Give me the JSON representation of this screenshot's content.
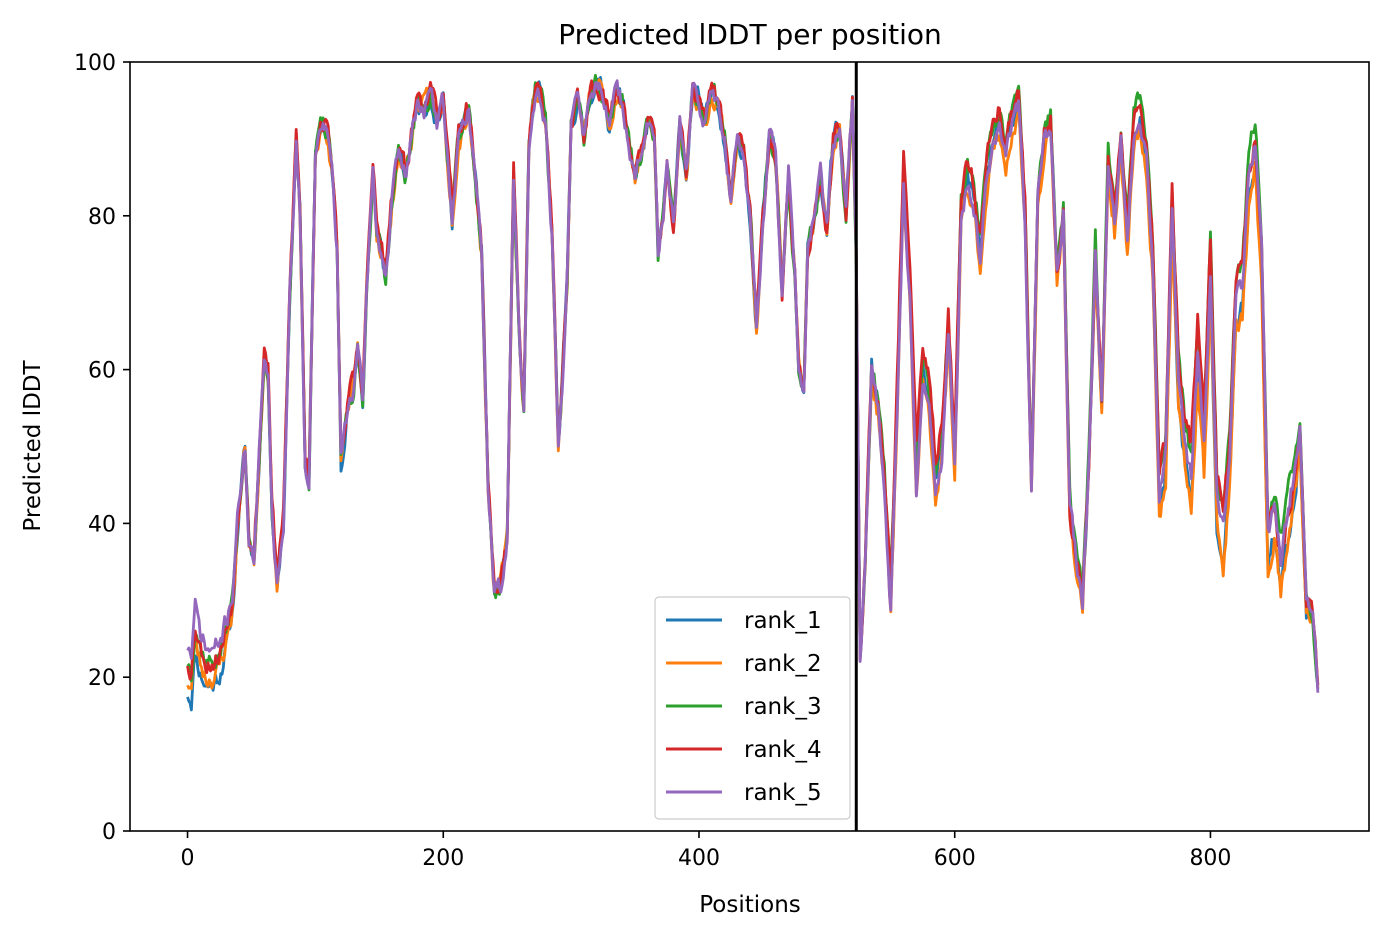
{
  "chart_data": {
    "type": "line",
    "title": "Predicted lDDT per position",
    "xlabel": "Positions",
    "ylabel": "Predicted lDDT",
    "xlim": [
      -45,
      924
    ],
    "ylim": [
      0,
      100
    ],
    "xticks": [
      0,
      200,
      400,
      600,
      800
    ],
    "yticks": [
      0,
      20,
      40,
      60,
      80,
      100
    ],
    "grid": false,
    "legend_position": "lower-right",
    "chain_boundary": 523,
    "colors": {
      "rank_1": "#1f77b4",
      "rank_2": "#ff7f0e",
      "rank_3": "#2ca02c",
      "rank_4": "#d62728",
      "rank_5": "#9467bd",
      "boundary": "#000000"
    },
    "base_profile": {
      "x": [
        0,
        3,
        6,
        10,
        15,
        20,
        25,
        30,
        35,
        40,
        45,
        48,
        52,
        55,
        60,
        63,
        66,
        70,
        75,
        80,
        85,
        88,
        92,
        95,
        100,
        105,
        110,
        113,
        117,
        120,
        125,
        130,
        133,
        137,
        140,
        145,
        148,
        152,
        155,
        160,
        165,
        170,
        175,
        180,
        185,
        190,
        195,
        200,
        203,
        207,
        212,
        216,
        220,
        225,
        230,
        235,
        240,
        245,
        250,
        255,
        260,
        263,
        267,
        272,
        276,
        280,
        285,
        290,
        293,
        297,
        300,
        305,
        310,
        315,
        320,
        325,
        330,
        335,
        340,
        345,
        350,
        355,
        360,
        365,
        368,
        372,
        375,
        380,
        385,
        390,
        395,
        400,
        405,
        410,
        415,
        420,
        425,
        430,
        435,
        440,
        445,
        450,
        455,
        460,
        465,
        470,
        475,
        478,
        482,
        485,
        490,
        495,
        500,
        505,
        510,
        515,
        520,
        523,
        526,
        530,
        535,
        540,
        545,
        550,
        555,
        560,
        565,
        570,
        575,
        580,
        585,
        590,
        595,
        600,
        605,
        610,
        615,
        620,
        625,
        630,
        635,
        640,
        645,
        650,
        655,
        660,
        665,
        670,
        675,
        680,
        685,
        690,
        695,
        700,
        705,
        710,
        715,
        720,
        725,
        730,
        735,
        740,
        745,
        750,
        755,
        760,
        765,
        770,
        775,
        780,
        785,
        790,
        795,
        800,
        805,
        810,
        815,
        820,
        825,
        830,
        835,
        840,
        845,
        850,
        855,
        860,
        865,
        870,
        875,
        880,
        884
      ],
      "y": [
        22,
        21,
        27,
        24,
        22,
        22,
        23,
        26,
        30,
        42,
        50,
        38,
        35,
        45,
        62,
        60,
        42,
        32,
        40,
        70,
        90,
        80,
        48,
        46,
        88,
        92,
        90,
        86,
        75,
        48,
        55,
        58,
        62,
        56,
        70,
        86,
        78,
        75,
        72,
        82,
        88,
        85,
        90,
        95,
        94,
        96,
        92,
        95,
        88,
        80,
        90,
        92,
        94,
        85,
        75,
        45,
        31,
        32,
        38,
        85,
        62,
        55,
        90,
        96,
        96,
        92,
        78,
        50,
        58,
        72,
        92,
        95,
        90,
        96,
        97,
        96,
        92,
        96,
        95,
        90,
        85,
        88,
        92,
        90,
        75,
        80,
        86,
        78,
        92,
        85,
        96,
        95,
        92,
        96,
        95,
        90,
        82,
        90,
        88,
        80,
        66,
        80,
        90,
        88,
        70,
        85,
        72,
        60,
        56,
        75,
        80,
        85,
        78,
        90,
        92,
        80,
        95,
        75,
        22,
        35,
        60,
        55,
        45,
        30,
        55,
        85,
        70,
        45,
        60,
        55,
        45,
        50,
        65,
        48,
        80,
        85,
        82,
        75,
        85,
        90,
        92,
        88,
        92,
        94,
        80,
        45,
        82,
        90,
        92,
        72,
        80,
        42,
        35,
        30,
        48,
        75,
        55,
        88,
        80,
        90,
        78,
        92,
        94,
        88,
        75,
        45,
        50,
        82,
        60,
        52,
        48,
        65,
        52,
        75,
        45,
        40,
        50,
        70,
        72,
        85,
        90,
        75,
        38,
        42,
        35,
        40,
        45,
        52,
        30,
        28,
        19
      ]
    },
    "series": [
      {
        "name": "rank_1",
        "seed": 11,
        "offsets": [
          [
            0,
            -4
          ],
          [
            35,
            -2
          ],
          [
            45,
            0
          ],
          [
            520,
            0
          ],
          [
            560,
            0
          ],
          [
            700,
            0
          ],
          [
            750,
            -2
          ],
          [
            790,
            -5
          ],
          [
            860,
            -3
          ],
          [
            884,
            0
          ]
        ]
      },
      {
        "name": "rank_2",
        "seed": 23,
        "offsets": [
          [
            0,
            -2.5
          ],
          [
            35,
            -1.5
          ],
          [
            45,
            0
          ],
          [
            520,
            0
          ],
          [
            560,
            -2
          ],
          [
            700,
            -1
          ],
          [
            750,
            -3
          ],
          [
            790,
            -6
          ],
          [
            860,
            -4
          ],
          [
            884,
            0
          ]
        ]
      },
      {
        "name": "rank_3",
        "seed": 37,
        "offsets": [
          [
            0,
            0
          ],
          [
            35,
            0
          ],
          [
            45,
            0
          ],
          [
            520,
            0
          ],
          [
            560,
            2
          ],
          [
            700,
            1
          ],
          [
            750,
            2
          ],
          [
            790,
            1
          ],
          [
            860,
            3
          ],
          [
            884,
            0
          ]
        ]
      },
      {
        "name": "rank_4",
        "seed": 53,
        "offsets": [
          [
            0,
            0
          ],
          [
            35,
            0
          ],
          [
            45,
            1
          ],
          [
            520,
            0
          ],
          [
            560,
            4
          ],
          [
            700,
            0
          ],
          [
            750,
            1
          ],
          [
            790,
            2
          ],
          [
            860,
            0
          ],
          [
            884,
            0
          ]
        ]
      },
      {
        "name": "rank_5",
        "seed": 71,
        "offsets": [
          [
            0,
            2
          ],
          [
            35,
            1
          ],
          [
            45,
            0
          ],
          [
            520,
            0
          ],
          [
            560,
            -1
          ],
          [
            700,
            0
          ],
          [
            750,
            -1
          ],
          [
            790,
            -2
          ],
          [
            860,
            1
          ],
          [
            884,
            0
          ]
        ]
      }
    ]
  }
}
